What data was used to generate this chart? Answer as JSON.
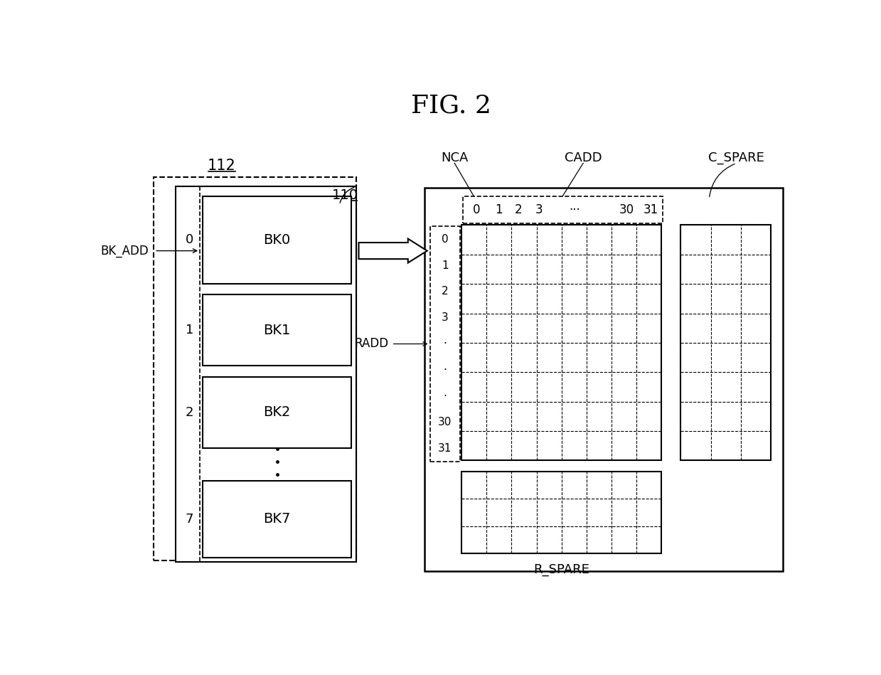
{
  "title": "FIG. 2",
  "bg_color": "#ffffff",
  "text_color": "#000000",
  "label_112": "112",
  "label_110": "110",
  "label_bk_add": "BK_ADD",
  "label_nca": "NCA",
  "label_cadd": "CADD",
  "label_c_spare": "C_SPARE",
  "label_radd": "RADD",
  "label_r_spare": "R_SPARE",
  "banks": [
    "BK0",
    "BK1",
    "BK2",
    "BK7"
  ],
  "bank_indices": [
    "0",
    "1",
    "2",
    "7"
  ],
  "cadd_nums": [
    "0",
    "1",
    "2",
    "3",
    "···",
    "30",
    "31"
  ],
  "radd_nums": [
    "0",
    "1",
    "2",
    "3",
    "·",
    "·",
    "·",
    "30",
    "31"
  ]
}
